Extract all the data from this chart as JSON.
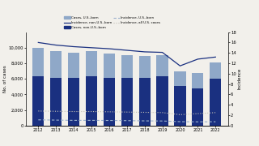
{
  "years": [
    2012,
    2013,
    2014,
    2015,
    2016,
    2017,
    2018,
    2019,
    2020,
    2021,
    2022
  ],
  "cases_us_born": [
    3650,
    3450,
    3300,
    3200,
    3050,
    2950,
    2800,
    2700,
    1950,
    2000,
    2150
  ],
  "cases_non_us_born": [
    6300,
    6100,
    6100,
    6350,
    6150,
    6100,
    6100,
    6300,
    5050,
    4800,
    6000
  ],
  "incidence_non_us_born": [
    16.0,
    15.5,
    15.2,
    15.0,
    14.8,
    14.5,
    14.2,
    14.1,
    11.5,
    12.8,
    13.2
  ],
  "incidence_us_born": [
    1.1,
    1.05,
    1.0,
    1.0,
    0.98,
    0.95,
    0.9,
    0.88,
    0.75,
    0.72,
    0.74
  ],
  "incidence_all": [
    2.8,
    2.75,
    2.7,
    2.7,
    2.65,
    2.6,
    2.55,
    2.5,
    2.1,
    2.3,
    2.5
  ],
  "color_us_born": "#8fa8c8",
  "color_non_us_born": "#1a3080",
  "ylim_left": [
    0,
    12000
  ],
  "ylim_right": [
    0,
    18
  ],
  "yticks_left": [
    0,
    2000,
    4000,
    6000,
    8000,
    10000
  ],
  "yticks_right": [
    0,
    2,
    4,
    6,
    8,
    10,
    12,
    14,
    16,
    18
  ],
  "ylabel_left": "No. of cases",
  "ylabel_right": "Incidence",
  "legend_items": [
    "Cases, U.S.-born",
    "Cases, non-U.S.-born",
    "Incidence, non-U.S.-born",
    "Incidence, U.S.-born",
    "Incidence, all U.S. cases"
  ],
  "bg_color": "#f2f0eb"
}
